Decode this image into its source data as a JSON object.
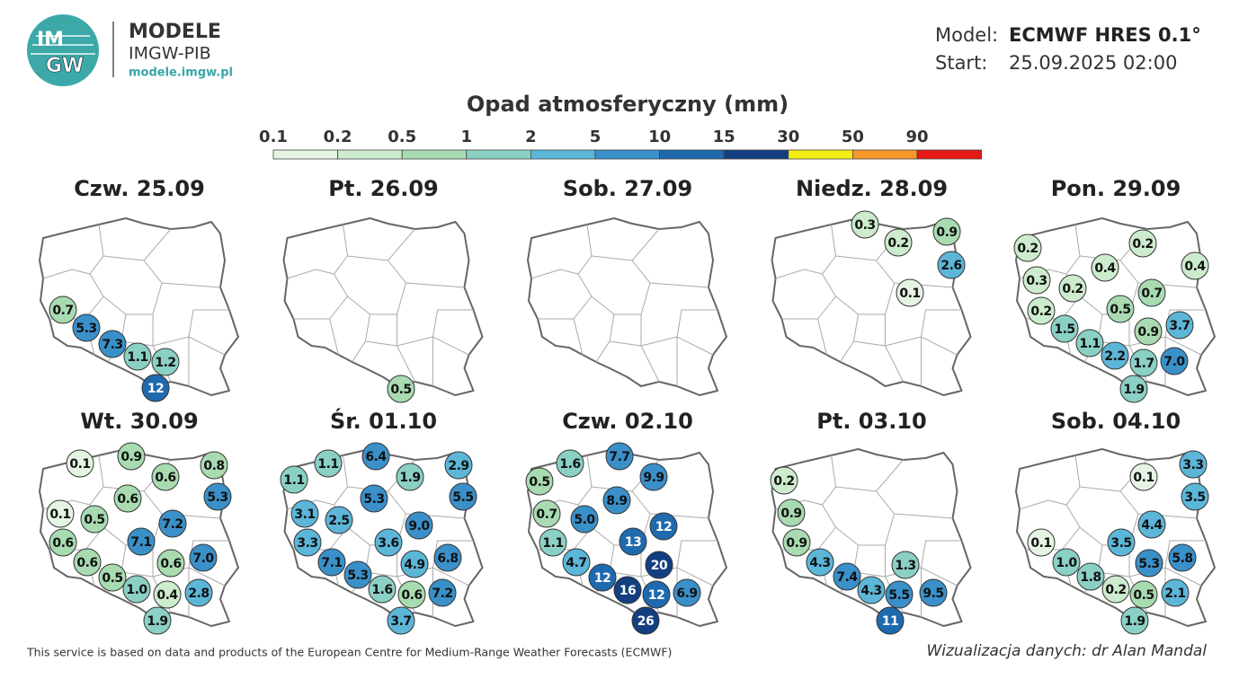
{
  "header": {
    "logo_text_top": "IM",
    "logo_text_bottom": "GW",
    "brand": "MODELE",
    "org": "IMGW-PIB",
    "url": "modele.imgw.pl"
  },
  "model_info": {
    "model_label": "Model:",
    "model_value": "ECMWF HRES 0.1°",
    "start_label": "Start:",
    "start_value": "25.09.2025 02:00"
  },
  "legend": {
    "title": "Opad atmosferyczny (mm)",
    "ticks": [
      "0.1",
      "0.2",
      "0.5",
      "1",
      "2",
      "5",
      "10",
      "15",
      "30",
      "50",
      "90"
    ],
    "colors": [
      "#e6f4e4",
      "#cdebcd",
      "#a9dbb1",
      "#8bd0c4",
      "#5cb6d8",
      "#3a90c9",
      "#1f6aae",
      "#133f82",
      "#f5ee14",
      "#f6982a",
      "#e51a12"
    ]
  },
  "panels": [
    {
      "title": "Czw. 25.09",
      "labels": [
        "0.7",
        "5.3",
        "7.3",
        "1.1",
        "1.2",
        "12"
      ]
    },
    {
      "title": "Pt. 26.09",
      "labels": [
        "0.5"
      ]
    },
    {
      "title": "Sob. 27.09",
      "labels": []
    },
    {
      "title": "Niedz. 28.09",
      "labels": [
        "0.3",
        "0.2",
        "0.9",
        "2.6",
        "0.1"
      ]
    },
    {
      "title": "Pon. 29.09",
      "labels": [
        "0.2",
        "0.2",
        "0.4",
        "0.4",
        "0.3",
        "0.2",
        "0.7",
        "0.2",
        "0.5",
        "3.7",
        "1.5",
        "0.9",
        "1.1",
        "2.2",
        "1.7",
        "7.0",
        "1.9"
      ]
    },
    {
      "title": "Wt. 30.09",
      "labels": [
        "0.1",
        "0.9",
        "0.6",
        "0.8",
        "5.3",
        "0.6",
        "0.1",
        "0.5",
        "7.2",
        "0.6",
        "7.1",
        "0.6",
        "0.6",
        "7.0",
        "0.5",
        "1.0",
        "0.4",
        "2.8",
        "1.9"
      ]
    },
    {
      "title": "Śr. 01.10",
      "labels": [
        "1.1",
        "6.4",
        "1.9",
        "2.9",
        "1.1",
        "5.3",
        "5.5",
        "3.1",
        "2.5",
        "9.0",
        "3.3",
        "3.6",
        "7.1",
        "4.9",
        "6.8",
        "5.3",
        "1.6",
        "0.6",
        "7.2",
        "3.7"
      ]
    },
    {
      "title": "Czw. 02.10",
      "labels": [
        "1.6",
        "7.7",
        "9.9",
        "0.5",
        "8.9",
        "0.7",
        "5.0",
        "13",
        "12",
        "1.1",
        "4.7",
        "20",
        "12",
        "16",
        "12",
        "6.9",
        "26"
      ]
    },
    {
      "title": "Pt. 03.10",
      "labels": [
        "0.2",
        "0.9",
        "0.9",
        "4.3",
        "7.4",
        "4.3",
        "1.3",
        "5.5",
        "9.5",
        "11"
      ]
    },
    {
      "title": "Sob. 04.10",
      "labels": [
        "0.1",
        "3.3",
        "3.5",
        "4.4",
        "0.1",
        "3.5",
        "1.0",
        "5.3",
        "5.8",
        "1.8",
        "0.2",
        "0.5",
        "2.1",
        "1.9"
      ]
    }
  ],
  "footer": {
    "source": "This service is based on data and products of the European Centre for Medium-Range Weather Forecasts (ECMWF)",
    "credit": "Wizualizacja danych: dr Alan Mandal"
  }
}
